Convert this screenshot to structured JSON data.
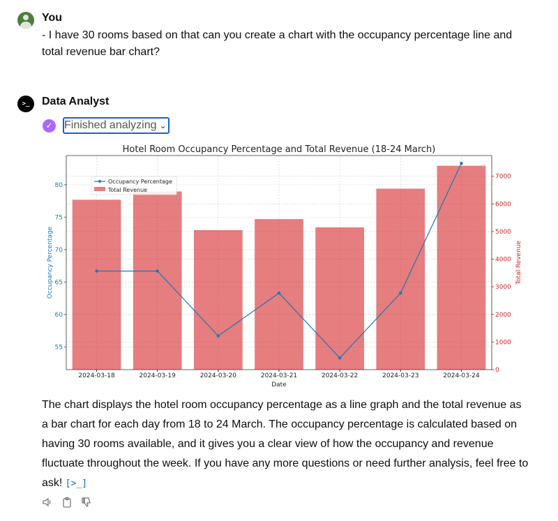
{
  "user": {
    "name": "You",
    "message": "- I have 30 rooms based on that can you create a chart with the occupancy percentage line and total revenue bar chart?"
  },
  "assistant": {
    "name": "Data Analyst",
    "avatar_glyph": ">_",
    "status_label": "Finished analyzing",
    "response": "The chart displays the hotel room occupancy percentage as a line graph and the total revenue as a bar chart for each day from 18 to 24 March. The occupancy percentage is calculated based on having 30 rooms available, and it gives you a clear view of how the occupancy and revenue fluctuate throughout the week. If you have any more questions or need further analysis, feel free to ask!",
    "code_link": "[>_]"
  },
  "icons": {
    "speaker": "speaker-icon",
    "copy": "clipboard-icon",
    "dislike": "thumbs-down-icon"
  },
  "colors": {
    "line": "#1f77b4",
    "bar": "#d62728",
    "check": "#ab68ff"
  },
  "chart_data": {
    "type": "bar",
    "title": "Hotel Room Occupancy Percentage and Total Revenue (18-24 March)",
    "xlabel": "Date",
    "ylabel_left": "Occupancy Percentage",
    "ylabel_right": "Total Revenue",
    "categories": [
      "2024-03-18",
      "2024-03-19",
      "2024-03-20",
      "2024-03-21",
      "2024-03-22",
      "2024-03-23",
      "2024-03-24"
    ],
    "series": [
      {
        "name": "Occupancy Percentage",
        "type": "line",
        "axis": "left",
        "values": [
          66.7,
          66.7,
          56.7,
          63.3,
          53.3,
          63.3,
          83.3
        ]
      },
      {
        "name": "Total Revenue",
        "type": "bar",
        "axis": "right",
        "values": [
          6150,
          6450,
          5050,
          5450,
          5150,
          6550,
          7380
        ]
      }
    ],
    "ylim_left": [
      51.5,
      84.5
    ],
    "yticks_left": [
      55,
      60,
      65,
      70,
      75,
      80
    ],
    "ylim_right": [
      0,
      7750
    ],
    "yticks_right": [
      0,
      1000,
      2000,
      3000,
      4000,
      5000,
      6000,
      7000
    ],
    "grid": true,
    "legend": "top-left"
  }
}
